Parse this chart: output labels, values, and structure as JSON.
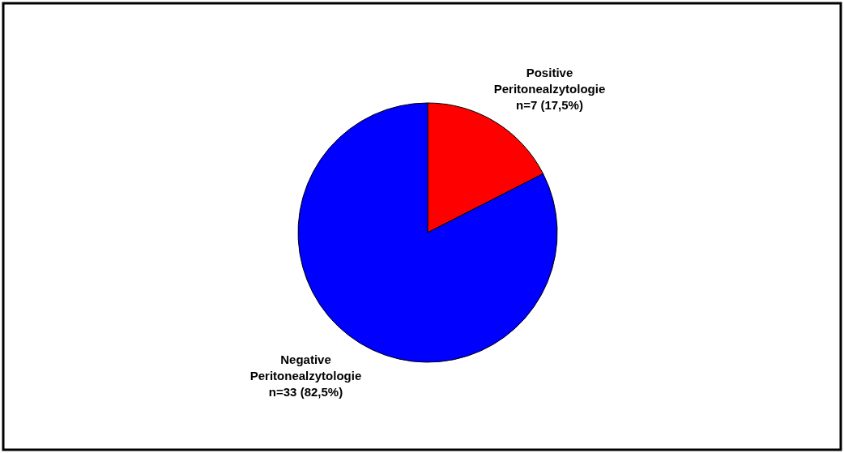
{
  "chart_data": {
    "type": "pie",
    "categories": [
      "Positive Peritonealzytologie",
      "Negative Peritonealzytologie"
    ],
    "values": [
      7,
      33
    ],
    "value_labels": [
      "n=7 (17,5%)",
      "n=33 (82,5%)"
    ],
    "colors": [
      "#ff0000",
      "#0000ff"
    ]
  }
}
